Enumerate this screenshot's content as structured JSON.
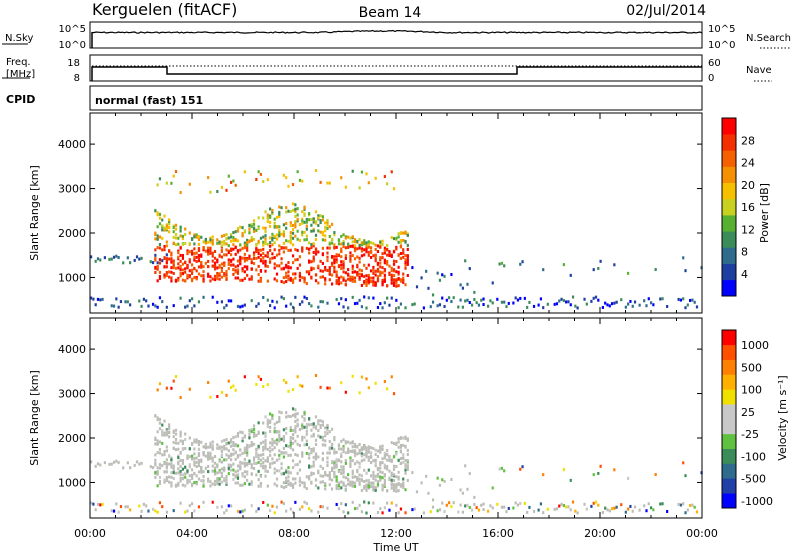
{
  "header": {
    "station": "Kerguelen (fitACF)",
    "beam": "Beam 14",
    "date": "02/Jul/2014"
  },
  "top_panels": {
    "nsky_label": "N.Sky",
    "nsky_ticks": [
      "10^5",
      "10^0"
    ],
    "nsearch_label": "N.Search",
    "nsearch_ticks": [
      "10^5",
      "10^0"
    ],
    "freq_label_line1": "Freq.",
    "freq_label_line2": "[MHz]",
    "freq_ticks": [
      "18",
      "8"
    ],
    "nave_label": "Nave",
    "nave_ticks": [
      "60",
      "0"
    ],
    "cpid_label": "CPID",
    "cpid_text": "normal (fast) 151"
  },
  "colors": {
    "ground_scatter": "#bdbdb8",
    "power_scale": [
      "#0000ff",
      "#1f3fa0",
      "#2e6b8c",
      "#3c8c5a",
      "#58b030",
      "#c8d020",
      "#f5c000",
      "#f59000",
      "#f56000",
      "#f53000",
      "#ff0000"
    ],
    "velocity_scale": [
      "#ff0000",
      "#ff5000",
      "#ff8000",
      "#ffb000",
      "#f0e000",
      "#c8c8c8",
      "#c8c8c8",
      "#60c040",
      "#3c8c5a",
      "#2e6b8c",
      "#2040a8",
      "#0000ff"
    ]
  },
  "chart_data": [
    {
      "type": "heatmap",
      "name": "power",
      "ylabel": "Slant Range [km]",
      "yticks": [
        "1000",
        "2000",
        "3000",
        "4000"
      ],
      "ylim": [
        200,
        4700
      ],
      "xlim": [
        0,
        24
      ],
      "colorbar_label": "Power [dB]",
      "colorbar_ticks": [
        "4",
        "8",
        "12",
        "16",
        "20",
        "24",
        "28"
      ],
      "colorbar_range": [
        0,
        32
      ]
    },
    {
      "type": "heatmap",
      "name": "velocity",
      "ylabel": "Slant Range [km]",
      "yticks": [
        "1000",
        "2000",
        "3000",
        "4000"
      ],
      "ylim": [
        200,
        4700
      ],
      "xlim": [
        0,
        24
      ],
      "colorbar_label": "Velocity [m s⁻¹]",
      "colorbar_ticks": [
        "1000",
        "500",
        "100",
        "25",
        "-25",
        "-100",
        "-500",
        "-1000"
      ]
    }
  ],
  "xaxis": {
    "ticks": [
      "00:00",
      "04:00",
      "08:00",
      "12:00",
      "16:00",
      "20:00",
      "00:00"
    ],
    "label": "Time UT"
  }
}
